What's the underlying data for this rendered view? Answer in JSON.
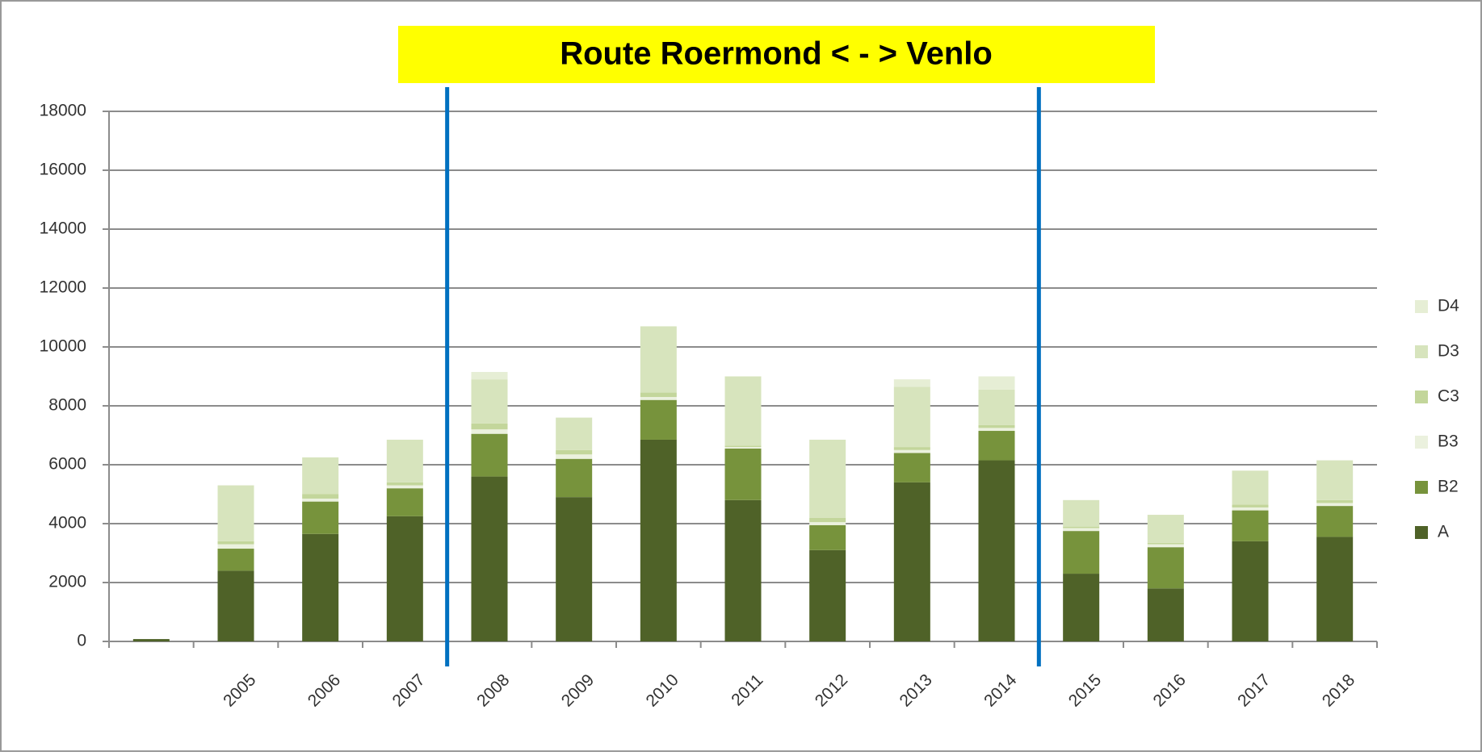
{
  "chart_data": {
    "type": "bar",
    "stacked": true,
    "title": "Route Roermond < - > Venlo",
    "categories": [
      null,
      "2005",
      "2006",
      "2007",
      "2008",
      "2009",
      "2010",
      "2011",
      "2012",
      "2013",
      "2014",
      "2015",
      "2016",
      "2017",
      "2018"
    ],
    "series": [
      {
        "name": "A",
        "color": "#4f6228",
        "values": [
          80,
          2400,
          3650,
          4250,
          5600,
          4900,
          6850,
          4800,
          3100,
          5400,
          6150,
          2300,
          1800,
          3400,
          3550
        ]
      },
      {
        "name": "B2",
        "color": "#77933c",
        "values": [
          0,
          750,
          1100,
          950,
          1450,
          1300,
          1350,
          1750,
          850,
          1000,
          1000,
          1450,
          1400,
          1050,
          1050
        ]
      },
      {
        "name": "B3",
        "color": "#ebf1de",
        "values": [
          0,
          150,
          100,
          100,
          150,
          150,
          100,
          50,
          100,
          100,
          100,
          100,
          100,
          100,
          100
        ]
      },
      {
        "name": "C3",
        "color": "#c3d69b",
        "values": [
          0,
          100,
          150,
          100,
          200,
          150,
          150,
          50,
          150,
          100,
          100,
          50,
          50,
          100,
          100
        ]
      },
      {
        "name": "D3",
        "color": "#d7e4bd",
        "values": [
          0,
          1900,
          1250,
          1450,
          1500,
          1100,
          2250,
          2350,
          2650,
          2050,
          1200,
          900,
          950,
          1150,
          1350
        ]
      },
      {
        "name": "D4",
        "color": "#e6eed5",
        "values": [
          0,
          0,
          0,
          0,
          250,
          0,
          0,
          0,
          0,
          250,
          450,
          0,
          0,
          0,
          0
        ]
      }
    ],
    "ylim": [
      0,
      18000
    ],
    "yticks": [
      0,
      2000,
      4000,
      6000,
      8000,
      10000,
      12000,
      14000,
      16000,
      18000
    ],
    "grid": true,
    "legend": "right"
  }
}
